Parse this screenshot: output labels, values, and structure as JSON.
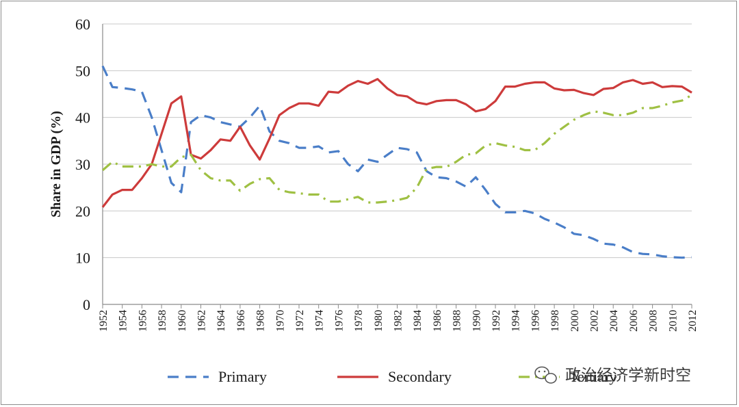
{
  "chart_data": {
    "type": "line",
    "ylabel": "Share in GDP (%)",
    "ylim": [
      0,
      60
    ],
    "yticks": [
      0,
      10,
      20,
      30,
      40,
      50,
      60
    ],
    "xlim": [
      1952,
      2012
    ],
    "xticks": [
      "1952",
      "1954",
      "1956",
      "1958",
      "1960",
      "1962",
      "1964",
      "1966",
      "1968",
      "1970",
      "1972",
      "1974",
      "1976",
      "1978",
      "1980",
      "1982",
      "1984",
      "1986",
      "1988",
      "1990",
      "1992",
      "1994",
      "1996",
      "1998",
      "2000",
      "2002",
      "2004",
      "2006",
      "2008",
      "2010",
      "2012"
    ],
    "grid": "horizontal",
    "legend_position": "bottom",
    "x": [
      1952,
      1953,
      1954,
      1955,
      1956,
      1957,
      1958,
      1959,
      1960,
      1961,
      1962,
      1963,
      1964,
      1965,
      1966,
      1967,
      1968,
      1969,
      1970,
      1971,
      1972,
      1973,
      1974,
      1975,
      1976,
      1977,
      1978,
      1979,
      1980,
      1981,
      1982,
      1983,
      1984,
      1985,
      1986,
      1987,
      1988,
      1989,
      1990,
      1991,
      1992,
      1993,
      1994,
      1995,
      1996,
      1997,
      1998,
      1999,
      2000,
      2001,
      2002,
      2003,
      2004,
      2005,
      2006,
      2007,
      2008,
      2009,
      2010,
      2011,
      2012
    ],
    "series": [
      {
        "name": "Primary",
        "color": "#4a7ec8",
        "dash": "dashed",
        "values": [
          51,
          46.5,
          46.3,
          46,
          45.5,
          40,
          33,
          26,
          24,
          39,
          40.5,
          40,
          39,
          38.5,
          38,
          40,
          42.5,
          37,
          35,
          34.5,
          33.5,
          33.5,
          33.8,
          32.5,
          32.8,
          30,
          28.5,
          31,
          30.5,
          32,
          33.5,
          33.2,
          32.5,
          28.5,
          27.2,
          27,
          26.3,
          25.2,
          27.2,
          24.5,
          21.5,
          19.7,
          19.7,
          20,
          19.5,
          18.3,
          17.5,
          16.5,
          15.1,
          14.8,
          14,
          13,
          12.8,
          12.2,
          11.2,
          10.8,
          10.7,
          10.3,
          10.1,
          10,
          10.1
        ]
      },
      {
        "name": "Secondary",
        "color": "#cd3b3b",
        "dash": "solid",
        "values": [
          20.8,
          23.5,
          24.5,
          24.5,
          27,
          30,
          36.5,
          43,
          44.5,
          32,
          31.2,
          33,
          35.3,
          35,
          38,
          34,
          31,
          35.5,
          40.5,
          42,
          43,
          43,
          42.5,
          45.5,
          45.3,
          46.8,
          47.8,
          47.2,
          48.2,
          46.2,
          44.8,
          44.5,
          43.2,
          42.8,
          43.5,
          43.7,
          43.7,
          42.8,
          41.3,
          41.8,
          43.5,
          46.6,
          46.6,
          47.2,
          47.5,
          47.5,
          46.2,
          45.8,
          45.9,
          45.2,
          44.8,
          46.1,
          46.3,
          47.5,
          48,
          47.2,
          47.5,
          46.5,
          46.7,
          46.6,
          45.3
        ]
      },
      {
        "name": "Tertiary",
        "color": "#9fc043",
        "dash": "dashdot",
        "values": [
          28.7,
          30.5,
          29.5,
          29.5,
          29.5,
          30,
          29.5,
          29.5,
          31.5,
          32,
          28.7,
          27,
          26.5,
          26.5,
          24.3,
          25.8,
          26.8,
          27,
          24.5,
          24,
          23.8,
          23.5,
          23.5,
          22,
          22,
          22.5,
          23,
          21.8,
          21.8,
          22,
          22.3,
          22.8,
          25,
          29,
          29.4,
          29.4,
          30.5,
          32,
          32.3,
          34,
          34.5,
          34,
          33.7,
          33,
          33,
          34.5,
          36.5,
          38,
          39.5,
          40.5,
          41.3,
          41,
          40.5,
          40.5,
          41,
          42,
          42,
          42.5,
          43.2,
          43.6,
          44.8
        ]
      }
    ]
  },
  "watermark": {
    "icon": "wechat-icon",
    "text": "政治经济学新时空"
  }
}
